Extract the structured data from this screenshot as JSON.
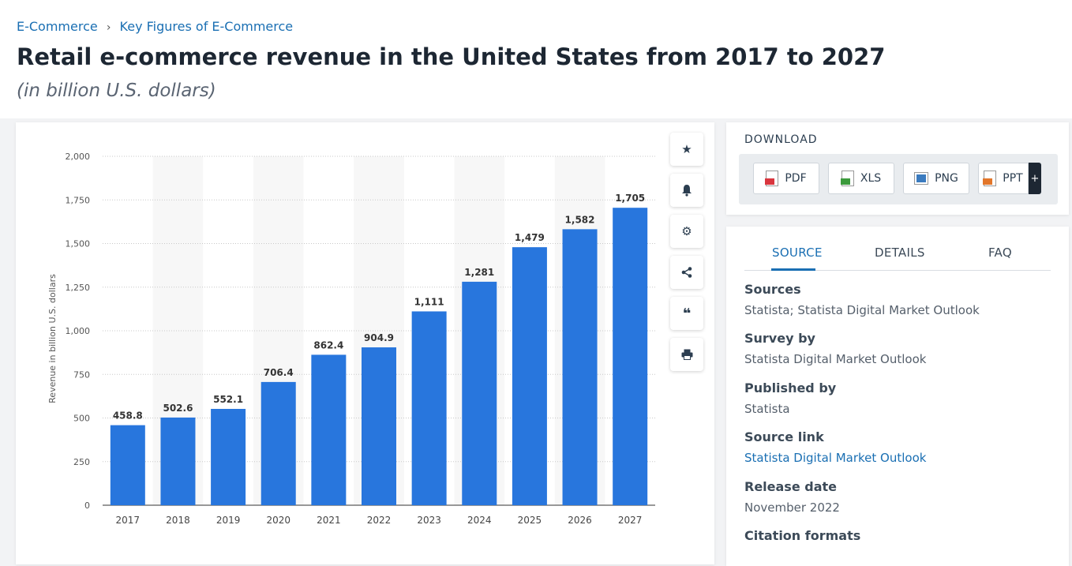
{
  "breadcrumb": {
    "item1": "E-Commerce",
    "separator": "›",
    "item2": "Key Figures of E-Commerce"
  },
  "page": {
    "title": "Retail e-commerce revenue in the United States from 2017 to 2027",
    "subtitle": "(in billion U.S. dollars)"
  },
  "chart_data": {
    "type": "bar",
    "categories": [
      "2017",
      "2018",
      "2019",
      "2020",
      "2021",
      "2022",
      "2023",
      "2024",
      "2025",
      "2026",
      "2027"
    ],
    "values": [
      458.8,
      502.6,
      552.1,
      706.4,
      862.4,
      904.9,
      1111,
      1281,
      1479,
      1582,
      1705
    ],
    "value_labels": [
      "458.8",
      "502.6",
      "552.1",
      "706.4",
      "862.4",
      "904.9",
      "1,111",
      "1,281",
      "1,479",
      "1,582",
      "1,705"
    ],
    "yticks": [
      0,
      250,
      500,
      750,
      1000,
      1250,
      1500,
      1750,
      2000
    ],
    "ytick_labels": [
      "0",
      "250",
      "500",
      "750",
      "1,000",
      "1,250",
      "1,500",
      "1,750",
      "2,000"
    ],
    "ylim": [
      0,
      2000
    ],
    "xlabel": "",
    "ylabel": "Revenue in billion U.S. dollars",
    "grid": true,
    "bar_color": "#2876dd"
  },
  "toolbar": {
    "icons": [
      "star-icon",
      "bell-icon",
      "gear-icon",
      "share-icon",
      "quote-icon",
      "print-icon"
    ]
  },
  "download": {
    "label": "DOWNLOAD",
    "pdf": "PDF",
    "xls": "XLS",
    "png": "PNG",
    "ppt": "PPT",
    "more": "+"
  },
  "tabs": {
    "source": "SOURCE",
    "details": "DETAILS",
    "faq": "FAQ"
  },
  "info": {
    "sources_label": "Sources",
    "sources_value": "Statista; Statista Digital Market Outlook",
    "survey_label": "Survey by",
    "survey_value": "Statista Digital Market Outlook",
    "published_label": "Published by",
    "published_value": "Statista",
    "link_label": "Source link",
    "link_value": "Statista Digital Market Outlook",
    "release_label": "Release date",
    "release_value": "November 2022",
    "citation_label": "Citation formats"
  },
  "colors": {
    "accent": "#1a6fb3",
    "bar": "#2876dd",
    "pdf": "#d9363e",
    "xls": "#3c9a3c",
    "png": "#3b7bbf",
    "ppt": "#e2762a"
  }
}
